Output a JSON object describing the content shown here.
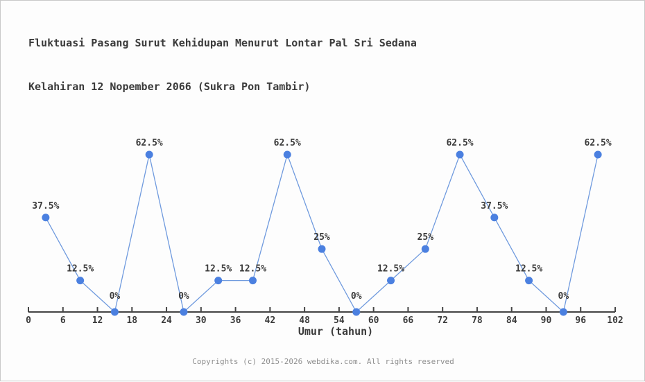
{
  "header": {
    "title_line1": "Fluktuasi Pasang Surut Kehidupan Menurut Lontar Pal Sri Sedana",
    "title_line2": "Kelahiran 12 Nopember 2066 (Sukra Pon Tambir)"
  },
  "chart_data": {
    "type": "line",
    "x": [
      3,
      9,
      15,
      21,
      27,
      33,
      39,
      45,
      51,
      57,
      63,
      69,
      75,
      81,
      87,
      93,
      99
    ],
    "values": [
      37.5,
      12.5,
      0,
      62.5,
      0,
      12.5,
      12.5,
      62.5,
      25,
      0,
      12.5,
      25,
      62.5,
      37.5,
      12.5,
      0,
      62.5
    ],
    "point_labels": [
      "37.5%",
      "12.5%",
      "0%",
      "62.5%",
      "0%",
      "12.5%",
      "12.5%",
      "62.5%",
      "25%",
      "0%",
      "12.5%",
      "25%",
      "62.5%",
      "37.5%",
      "12.5%",
      "0%",
      "62.5%"
    ],
    "x_ticks": [
      0,
      6,
      12,
      18,
      24,
      30,
      36,
      42,
      48,
      54,
      60,
      66,
      72,
      78,
      84,
      90,
      96,
      102
    ],
    "xlabel": "Umur (tahun)",
    "xlim": [
      0,
      102
    ],
    "ylim": [
      0,
      75
    ],
    "grid": false,
    "legend": null,
    "title": "Fluktuasi Pasang Surut Kehidupan Menurut Lontar Pal Sri Sedana Kelahiran 12 Nopember 2066 (Sukra Pon Tambir)",
    "colors": {
      "line": "#6f9ade",
      "marker": "#4b80e0",
      "axis": "#444444",
      "label_text": "#3b3b3b"
    }
  },
  "footer": {
    "copyright": "Copyrights (c) 2015-2026 webdika.com. All rights reserved"
  }
}
